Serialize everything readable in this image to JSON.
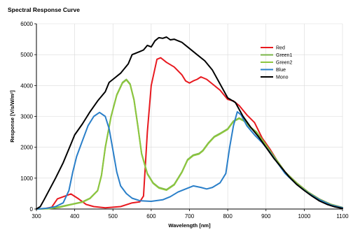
{
  "chart_data": {
    "type": "line",
    "title": "Spectral Response Curve",
    "xlabel": "Wavelength [nm]",
    "ylabel": "Response [V/s/W/m²]",
    "xlim": [
      300,
      1100
    ],
    "ylim": [
      0,
      6000
    ],
    "xticks": [
      "300",
      "400",
      "500",
      "600",
      "700",
      "800",
      "900",
      "1000",
      "1100"
    ],
    "yticks": [
      "0",
      "1000",
      "2000",
      "3000",
      "4000",
      "5000",
      "6000"
    ],
    "grid": true,
    "legend_position": "top-right",
    "series": [
      {
        "name": "Red",
        "color": "#e8191f",
        "points": [
          [
            300,
            0
          ],
          [
            320,
            10
          ],
          [
            340,
            60
          ],
          [
            355,
            330
          ],
          [
            375,
            420
          ],
          [
            390,
            490
          ],
          [
            410,
            330
          ],
          [
            430,
            150
          ],
          [
            450,
            80
          ],
          [
            480,
            40
          ],
          [
            520,
            80
          ],
          [
            550,
            200
          ],
          [
            570,
            230
          ],
          [
            580,
            420
          ],
          [
            590,
            2500
          ],
          [
            600,
            4000
          ],
          [
            615,
            4850
          ],
          [
            625,
            4900
          ],
          [
            640,
            4750
          ],
          [
            660,
            4600
          ],
          [
            680,
            4350
          ],
          [
            690,
            4150
          ],
          [
            700,
            4080
          ],
          [
            710,
            4150
          ],
          [
            720,
            4200
          ],
          [
            730,
            4280
          ],
          [
            745,
            4200
          ],
          [
            760,
            4050
          ],
          [
            780,
            3850
          ],
          [
            800,
            3550
          ],
          [
            815,
            3500
          ],
          [
            830,
            3350
          ],
          [
            850,
            3050
          ],
          [
            870,
            2800
          ],
          [
            890,
            2300
          ],
          [
            910,
            1950
          ],
          [
            930,
            1550
          ],
          [
            950,
            1200
          ],
          [
            980,
            850
          ],
          [
            1010,
            550
          ],
          [
            1040,
            320
          ],
          [
            1070,
            150
          ],
          [
            1100,
            50
          ]
        ]
      },
      {
        "name": "Green1",
        "color": "#7ab648",
        "points": [
          [
            300,
            0
          ],
          [
            330,
            20
          ],
          [
            360,
            70
          ],
          [
            390,
            150
          ],
          [
            420,
            230
          ],
          [
            440,
            350
          ],
          [
            460,
            600
          ],
          [
            470,
            1100
          ],
          [
            480,
            2000
          ],
          [
            495,
            3000
          ],
          [
            510,
            3700
          ],
          [
            525,
            4100
          ],
          [
            535,
            4200
          ],
          [
            545,
            4050
          ],
          [
            555,
            3550
          ],
          [
            565,
            2700
          ],
          [
            575,
            1800
          ],
          [
            590,
            1150
          ],
          [
            605,
            850
          ],
          [
            620,
            700
          ],
          [
            640,
            630
          ],
          [
            660,
            800
          ],
          [
            680,
            1200
          ],
          [
            695,
            1600
          ],
          [
            710,
            1750
          ],
          [
            725,
            1800
          ],
          [
            735,
            1900
          ],
          [
            750,
            2150
          ],
          [
            765,
            2350
          ],
          [
            780,
            2450
          ],
          [
            800,
            2600
          ],
          [
            815,
            2850
          ],
          [
            830,
            2950
          ],
          [
            845,
            2850
          ],
          [
            860,
            2650
          ],
          [
            875,
            2500
          ],
          [
            890,
            2250
          ],
          [
            910,
            1900
          ],
          [
            930,
            1550
          ],
          [
            950,
            1200
          ],
          [
            980,
            850
          ],
          [
            1010,
            550
          ],
          [
            1040,
            320
          ],
          [
            1070,
            150
          ],
          [
            1100,
            50
          ]
        ]
      },
      {
        "name": "Green2",
        "color": "#8dc63f",
        "points": [
          [
            300,
            0
          ],
          [
            330,
            10
          ],
          [
            360,
            55
          ],
          [
            390,
            140
          ],
          [
            420,
            220
          ],
          [
            440,
            340
          ],
          [
            460,
            590
          ],
          [
            470,
            1080
          ],
          [
            480,
            1980
          ],
          [
            495,
            2980
          ],
          [
            510,
            3680
          ],
          [
            525,
            4080
          ],
          [
            535,
            4180
          ],
          [
            545,
            4030
          ],
          [
            555,
            3530
          ],
          [
            565,
            2680
          ],
          [
            575,
            1780
          ],
          [
            590,
            1130
          ],
          [
            605,
            830
          ],
          [
            620,
            680
          ],
          [
            640,
            610
          ],
          [
            660,
            780
          ],
          [
            680,
            1180
          ],
          [
            695,
            1580
          ],
          [
            710,
            1730
          ],
          [
            725,
            1780
          ],
          [
            735,
            1880
          ],
          [
            750,
            2130
          ],
          [
            765,
            2330
          ],
          [
            780,
            2430
          ],
          [
            800,
            2580
          ],
          [
            815,
            2830
          ],
          [
            830,
            2930
          ],
          [
            845,
            2830
          ],
          [
            860,
            2630
          ],
          [
            875,
            2480
          ],
          [
            890,
            2230
          ],
          [
            910,
            1880
          ],
          [
            930,
            1530
          ],
          [
            950,
            1180
          ],
          [
            980,
            830
          ],
          [
            1010,
            530
          ],
          [
            1040,
            300
          ],
          [
            1070,
            140
          ],
          [
            1100,
            40
          ]
        ]
      },
      {
        "name": "Blue",
        "color": "#2a7fc9",
        "points": [
          [
            300,
            0
          ],
          [
            330,
            30
          ],
          [
            350,
            80
          ],
          [
            370,
            200
          ],
          [
            385,
            600
          ],
          [
            395,
            1200
          ],
          [
            405,
            1700
          ],
          [
            420,
            2200
          ],
          [
            435,
            2700
          ],
          [
            450,
            3000
          ],
          [
            465,
            3130
          ],
          [
            480,
            3000
          ],
          [
            490,
            2600
          ],
          [
            500,
            1900
          ],
          [
            510,
            1200
          ],
          [
            520,
            750
          ],
          [
            535,
            500
          ],
          [
            550,
            350
          ],
          [
            570,
            270
          ],
          [
            600,
            250
          ],
          [
            630,
            300
          ],
          [
            650,
            400
          ],
          [
            670,
            550
          ],
          [
            690,
            650
          ],
          [
            710,
            750
          ],
          [
            730,
            700
          ],
          [
            745,
            650
          ],
          [
            760,
            700
          ],
          [
            780,
            850
          ],
          [
            795,
            1150
          ],
          [
            805,
            2000
          ],
          [
            815,
            2700
          ],
          [
            825,
            3150
          ],
          [
            835,
            3050
          ],
          [
            850,
            2700
          ],
          [
            870,
            2400
          ],
          [
            890,
            2150
          ],
          [
            910,
            1850
          ],
          [
            930,
            1500
          ],
          [
            950,
            1150
          ],
          [
            980,
            800
          ],
          [
            1010,
            520
          ],
          [
            1040,
            300
          ],
          [
            1070,
            130
          ],
          [
            1100,
            40
          ]
        ]
      },
      {
        "name": "Mono",
        "color": "#000000",
        "points": [
          [
            300,
            0
          ],
          [
            310,
            80
          ],
          [
            320,
            300
          ],
          [
            335,
            650
          ],
          [
            350,
            1000
          ],
          [
            370,
            1500
          ],
          [
            390,
            2100
          ],
          [
            400,
            2400
          ],
          [
            420,
            2750
          ],
          [
            440,
            3150
          ],
          [
            460,
            3500
          ],
          [
            480,
            3800
          ],
          [
            490,
            4100
          ],
          [
            500,
            4200
          ],
          [
            520,
            4400
          ],
          [
            540,
            4700
          ],
          [
            550,
            5000
          ],
          [
            570,
            5100
          ],
          [
            580,
            5150
          ],
          [
            590,
            5300
          ],
          [
            600,
            5250
          ],
          [
            610,
            5450
          ],
          [
            620,
            5550
          ],
          [
            630,
            5530
          ],
          [
            640,
            5570
          ],
          [
            650,
            5480
          ],
          [
            660,
            5500
          ],
          [
            680,
            5400
          ],
          [
            700,
            5200
          ],
          [
            720,
            5000
          ],
          [
            740,
            4800
          ],
          [
            760,
            4500
          ],
          [
            780,
            4050
          ],
          [
            800,
            3600
          ],
          [
            820,
            3450
          ],
          [
            840,
            3000
          ],
          [
            860,
            2650
          ],
          [
            880,
            2350
          ],
          [
            900,
            2000
          ],
          [
            920,
            1650
          ],
          [
            940,
            1350
          ],
          [
            960,
            1050
          ],
          [
            980,
            800
          ],
          [
            1000,
            600
          ],
          [
            1020,
            420
          ],
          [
            1040,
            260
          ],
          [
            1060,
            150
          ],
          [
            1080,
            70
          ],
          [
            1100,
            20
          ]
        ]
      }
    ]
  }
}
